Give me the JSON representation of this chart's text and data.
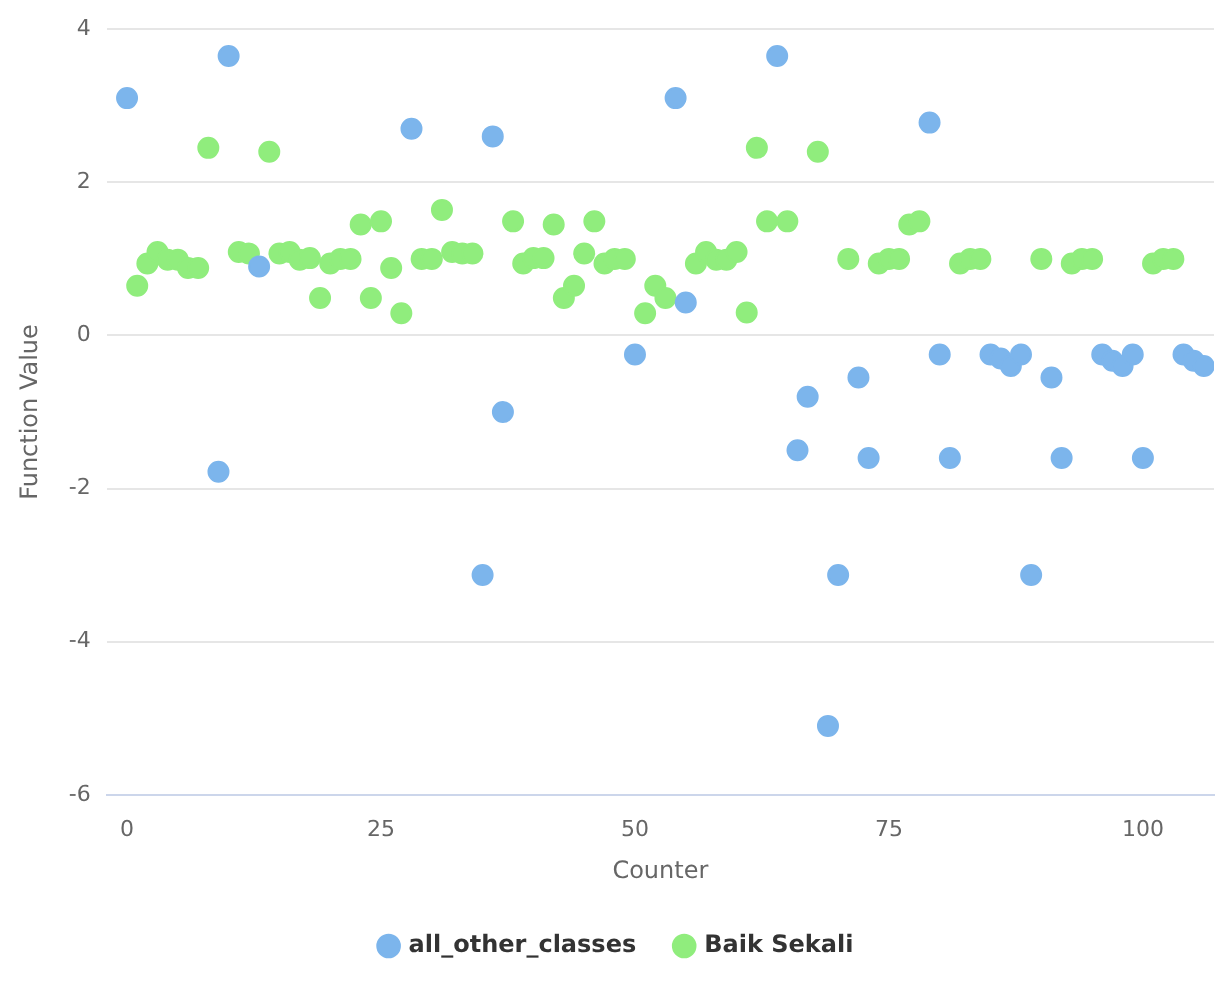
{
  "chart_data": {
    "type": "scatter",
    "xlabel": "Counter",
    "ylabel": "Function Value",
    "xlim": [
      -2,
      107
    ],
    "xticks": [
      0,
      25,
      50,
      75,
      100
    ],
    "ylim": [
      -6,
      4
    ],
    "yticks": [
      -6,
      -4,
      -2,
      0,
      2,
      4
    ],
    "grid": "y",
    "legend": "bottom",
    "marker": "circle",
    "series": [
      {
        "name": "all_other_classes",
        "color": "#7cb5ec",
        "x": [
          0,
          9,
          10,
          13,
          28,
          35,
          36,
          37,
          50,
          54,
          55,
          64,
          66,
          67,
          69,
          70,
          72,
          73,
          79,
          80,
          81,
          85,
          86,
          87,
          88,
          89,
          91,
          92,
          96,
          97,
          98,
          99,
          100,
          104,
          105,
          106
        ],
        "values": [
          3.1,
          -1.78,
          3.65,
          0.9,
          2.7,
          -3.13,
          2.6,
          -1.0,
          -0.25,
          3.1,
          0.43,
          3.65,
          -1.5,
          -0.8,
          -5.1,
          -3.13,
          -0.55,
          -1.6,
          2.78,
          -0.25,
          -1.6,
          -0.25,
          -0.3,
          -0.4,
          -0.25,
          -3.13,
          -0.55,
          -1.6,
          -0.25,
          -0.33,
          -0.4,
          -0.25,
          -1.6,
          -0.25,
          -0.33,
          -0.4
        ]
      },
      {
        "name": "Baik Sekali",
        "color": "#90ed7d",
        "x": [
          1,
          2,
          3,
          4,
          5,
          6,
          7,
          8,
          11,
          12,
          14,
          15,
          16,
          17,
          18,
          19,
          20,
          21,
          22,
          23,
          24,
          25,
          26,
          27,
          29,
          30,
          31,
          32,
          33,
          34,
          38,
          39,
          40,
          41,
          42,
          43,
          44,
          45,
          46,
          47,
          48,
          49,
          51,
          52,
          53,
          56,
          57,
          58,
          59,
          60,
          61,
          62,
          63,
          65,
          68,
          71,
          74,
          75,
          76,
          77,
          78,
          82,
          83,
          84,
          90,
          93,
          94,
          95,
          101,
          102,
          103
        ],
        "values": [
          0.65,
          0.94,
          1.09,
          0.99,
          0.99,
          0.88,
          0.88,
          2.45,
          1.09,
          1.07,
          2.4,
          1.07,
          1.09,
          0.99,
          1.01,
          0.49,
          0.94,
          1.0,
          1.0,
          1.45,
          0.49,
          1.49,
          0.88,
          0.29,
          1.0,
          1.0,
          1.64,
          1.09,
          1.07,
          1.07,
          1.49,
          0.94,
          1.01,
          1.01,
          1.45,
          0.49,
          0.65,
          1.07,
          1.49,
          0.94,
          1.0,
          1.0,
          0.29,
          0.65,
          0.49,
          0.94,
          1.09,
          0.99,
          0.99,
          1.09,
          0.3,
          2.45,
          1.49,
          1.49,
          2.4,
          1.0,
          0.94,
          1.0,
          1.0,
          1.45,
          1.49,
          0.94,
          1.0,
          1.0,
          1.0,
          0.94,
          1.0,
          1.0,
          0.94,
          1.0,
          1.0
        ]
      }
    ]
  }
}
